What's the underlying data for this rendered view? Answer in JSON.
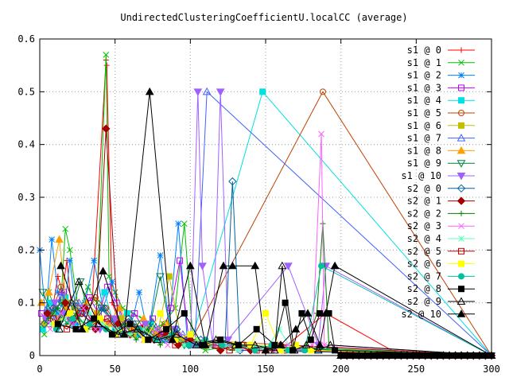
{
  "chart_data": {
    "type": "line",
    "title": "UndirectedClusteringCoefficientU.localCC (average)",
    "xlabel": "",
    "ylabel": "",
    "xlim": [
      0,
      300
    ],
    "ylim": [
      0,
      0.6
    ],
    "xticks": [
      "0",
      "50",
      "100",
      "150",
      "200",
      "250",
      "300"
    ],
    "yticks": [
      "0",
      "0.1",
      "0.2",
      "0.3",
      "0.4",
      "0.5",
      "0.6"
    ],
    "grid": true,
    "legend_position": "top-right",
    "series": [
      {
        "name": "s1 @ 0",
        "color": "#ff0000",
        "marker": "plus",
        "x": [
          2,
          5,
          8,
          12,
          15,
          18,
          22,
          28,
          35,
          44,
          44.5,
          48,
          52,
          60,
          70,
          78,
          88,
          95,
          105,
          115,
          125,
          140,
          160,
          190,
          240
        ],
        "y": [
          0.05,
          0.1,
          0.08,
          0.15,
          0.12,
          0.18,
          0.06,
          0.09,
          0.11,
          0.56,
          0.55,
          0.1,
          0.07,
          0.05,
          0.06,
          0.04,
          0.05,
          0.03,
          0.02,
          0.02,
          0.02,
          0.01,
          0.01,
          0.08,
          0.0
        ]
      },
      {
        "name": "s1 @ 1",
        "color": "#00c000",
        "marker": "cross",
        "x": [
          3,
          6,
          10,
          14,
          17,
          20,
          26,
          32,
          38,
          44,
          46,
          50,
          55,
          62,
          68,
          75,
          82,
          90,
          96,
          102,
          110,
          130
        ],
        "y": [
          0.04,
          0.12,
          0.09,
          0.1,
          0.24,
          0.2,
          0.08,
          0.13,
          0.1,
          0.57,
          0.15,
          0.12,
          0.09,
          0.08,
          0.07,
          0.05,
          0.06,
          0.09,
          0.25,
          0.02,
          0.01,
          0.02
        ]
      },
      {
        "name": "s1 @ 2",
        "color": "#0080ff",
        "marker": "star",
        "x": [
          0,
          4,
          8,
          12,
          16,
          20,
          25,
          30,
          36,
          42,
          48,
          54,
          60,
          66,
          72,
          80,
          86,
          92,
          98,
          104
        ],
        "y": [
          0.2,
          0.07,
          0.22,
          0.12,
          0.08,
          0.18,
          0.06,
          0.1,
          0.18,
          0.09,
          0.14,
          0.07,
          0.05,
          0.12,
          0.04,
          0.19,
          0.06,
          0.25,
          0.03,
          0.02
        ]
      },
      {
        "name": "s1 @ 3",
        "color": "#c000ff",
        "marker": "square",
        "x": [
          1,
          6,
          11,
          16,
          21,
          27,
          33,
          39,
          45,
          51,
          57,
          63,
          69,
          75,
          81,
          87,
          93,
          99
        ],
        "y": [
          0.08,
          0.06,
          0.1,
          0.12,
          0.07,
          0.09,
          0.11,
          0.08,
          0.13,
          0.1,
          0.06,
          0.08,
          0.05,
          0.07,
          0.04,
          0.09,
          0.18,
          0.03
        ]
      },
      {
        "name": "s1 @ 4",
        "color": "#00e0e0",
        "marker": "square-filled",
        "x": [
          2,
          7,
          12,
          17,
          22,
          29,
          36,
          43,
          50,
          58,
          66,
          74,
          82,
          90,
          100,
          148
        ],
        "y": [
          0.05,
          0.1,
          0.08,
          0.11,
          0.06,
          0.09,
          0.07,
          0.12,
          0.05,
          0.08,
          0.04,
          0.06,
          0.03,
          0.05,
          0.02,
          0.5
        ]
      },
      {
        "name": "s1 @ 5",
        "color": "#c04000",
        "marker": "circle",
        "x": [
          4,
          9,
          14,
          19,
          24,
          31,
          37,
          44,
          51,
          59,
          67,
          75,
          83,
          91,
          99,
          188
        ],
        "y": [
          0.07,
          0.09,
          0.13,
          0.06,
          0.1,
          0.08,
          0.11,
          0.09,
          0.06,
          0.07,
          0.05,
          0.04,
          0.06,
          0.03,
          0.02,
          0.5
        ]
      },
      {
        "name": "s1 @ 6",
        "color": "#c0c000",
        "marker": "square-filled",
        "x": [
          3,
          8,
          13,
          18,
          23,
          30,
          38,
          46,
          54,
          62,
          70,
          78,
          86,
          94
        ],
        "y": [
          0.06,
          0.08,
          0.07,
          0.1,
          0.09,
          0.05,
          0.08,
          0.06,
          0.07,
          0.04,
          0.05,
          0.04,
          0.15,
          0.03
        ]
      },
      {
        "name": "s1 @ 7",
        "color": "#4060ff",
        "marker": "triangle",
        "x": [
          5,
          10,
          15,
          20,
          26,
          33,
          40,
          47,
          55,
          63,
          71,
          79,
          87,
          95,
          103,
          111
        ],
        "y": [
          0.09,
          0.07,
          0.12,
          0.08,
          0.1,
          0.06,
          0.09,
          0.07,
          0.05,
          0.06,
          0.04,
          0.05,
          0.03,
          0.04,
          0.02,
          0.5
        ]
      },
      {
        "name": "s1 @ 8",
        "color": "#ffa000",
        "marker": "triangle-filled",
        "x": [
          1,
          6,
          13,
          18,
          24,
          31,
          38,
          45,
          53,
          61,
          69,
          77,
          85,
          93
        ],
        "y": [
          0.1,
          0.12,
          0.22,
          0.09,
          0.07,
          0.1,
          0.08,
          0.06,
          0.09,
          0.05,
          0.07,
          0.04,
          0.06,
          0.03
        ]
      },
      {
        "name": "s1 @ 9",
        "color": "#008040",
        "marker": "triangle-down",
        "x": [
          2,
          8,
          14,
          20,
          27,
          34,
          41,
          48,
          56,
          64,
          72,
          80,
          88,
          96
        ],
        "y": [
          0.12,
          0.08,
          0.1,
          0.07,
          0.14,
          0.06,
          0.09,
          0.07,
          0.05,
          0.06,
          0.04,
          0.15,
          0.03,
          0.02
        ]
      },
      {
        "name": "s1 @ 10",
        "color": "#a060ff",
        "marker": "triangle-down-filled",
        "x": [
          4,
          10,
          16,
          22,
          30,
          40,
          50,
          60,
          70,
          80,
          90,
          100,
          105,
          108,
          115,
          120,
          125,
          165,
          185,
          190
        ],
        "y": [
          0.07,
          0.1,
          0.08,
          0.06,
          0.09,
          0.05,
          0.07,
          0.04,
          0.06,
          0.03,
          0.05,
          0.02,
          0.5,
          0.17,
          0.02,
          0.5,
          0.03,
          0.17,
          0.02,
          0.17
        ]
      },
      {
        "name": "s2 @ 0",
        "color": "#0060a0",
        "marker": "diamond",
        "x": [
          3,
          9,
          15,
          21,
          28,
          35,
          43,
          51,
          59,
          67,
          75,
          83,
          91,
          99,
          107,
          115,
          123,
          128,
          133
        ],
        "y": [
          0.06,
          0.09,
          0.07,
          0.1,
          0.08,
          0.06,
          0.09,
          0.05,
          0.07,
          0.04,
          0.06,
          0.03,
          0.05,
          0.02,
          0.03,
          0.02,
          0.02,
          0.33,
          0.01
        ]
      },
      {
        "name": "s2 @ 1",
        "color": "#a00000",
        "marker": "diamond-filled",
        "x": [
          5,
          11,
          17,
          23,
          30,
          37,
          44,
          52,
          60,
          68,
          76,
          84,
          92,
          100,
          110,
          120,
          130,
          140,
          150,
          160
        ],
        "y": [
          0.08,
          0.06,
          0.1,
          0.07,
          0.09,
          0.05,
          0.43,
          0.06,
          0.04,
          0.05,
          0.03,
          0.04,
          0.02,
          0.03,
          0.02,
          0.01,
          0.02,
          0.01,
          0.01,
          0.02
        ]
      },
      {
        "name": "s2 @ 2",
        "color": "#008000",
        "marker": "plus",
        "x": [
          6,
          12,
          18,
          24,
          32,
          40,
          48,
          56,
          64,
          72,
          80,
          88,
          96,
          104,
          112,
          120,
          128,
          136,
          144,
          152,
          160,
          168,
          176,
          184,
          188,
          192
        ],
        "y": [
          0.07,
          0.09,
          0.06,
          0.08,
          0.05,
          0.07,
          0.04,
          0.06,
          0.03,
          0.05,
          0.02,
          0.04,
          0.02,
          0.03,
          0.02,
          0.02,
          0.01,
          0.02,
          0.01,
          0.01,
          0.02,
          0.01,
          0.01,
          0.08,
          0.25,
          0.02
        ]
      },
      {
        "name": "s2 @ 3",
        "color": "#ff60ff",
        "marker": "cross",
        "x": [
          7,
          14,
          21,
          29,
          37,
          45,
          53,
          61,
          69,
          77,
          85,
          93,
          101,
          109,
          117,
          125,
          133,
          141,
          149,
          157,
          165,
          173,
          181,
          187,
          189
        ],
        "y": [
          0.05,
          0.08,
          0.06,
          0.09,
          0.05,
          0.07,
          0.04,
          0.06,
          0.03,
          0.05,
          0.02,
          0.04,
          0.02,
          0.03,
          0.02,
          0.02,
          0.01,
          0.02,
          0.01,
          0.01,
          0.02,
          0.01,
          0.02,
          0.42,
          0.02
        ]
      },
      {
        "name": "s2 @ 4",
        "color": "#60ffc0",
        "marker": "star",
        "x": [
          8,
          16,
          24,
          33,
          42,
          51,
          60,
          69,
          78,
          87,
          96,
          105,
          114,
          123,
          132,
          141,
          150,
          159,
          168
        ],
        "y": [
          0.06,
          0.07,
          0.05,
          0.08,
          0.06,
          0.05,
          0.04,
          0.05,
          0.03,
          0.04,
          0.02,
          0.03,
          0.02,
          0.02,
          0.01,
          0.02,
          0.01,
          0.05,
          0.01
        ]
      },
      {
        "name": "s2 @ 5",
        "color": "#c00000",
        "marker": "square",
        "x": [
          9,
          18,
          27,
          36,
          45,
          54,
          63,
          72,
          81,
          90,
          99,
          108,
          117,
          126,
          135,
          144,
          153,
          162
        ],
        "y": [
          0.07,
          0.05,
          0.08,
          0.06,
          0.07,
          0.04,
          0.05,
          0.03,
          0.04,
          0.02,
          0.03,
          0.02,
          0.02,
          0.01,
          0.02,
          0.01,
          0.01,
          0.01
        ]
      },
      {
        "name": "s2 @ 6",
        "color": "#ffff00",
        "marker": "square-filled",
        "x": [
          10,
          20,
          30,
          40,
          50,
          60,
          70,
          80,
          90,
          100,
          110,
          120,
          130,
          140,
          150,
          160,
          170,
          180
        ],
        "y": [
          0.06,
          0.08,
          0.05,
          0.07,
          0.04,
          0.06,
          0.03,
          0.08,
          0.03,
          0.04,
          0.02,
          0.03,
          0.02,
          0.02,
          0.08,
          0.01,
          0.02,
          0.01
        ]
      },
      {
        "name": "s2 @ 7",
        "color": "#00c0a0",
        "marker": "circle-filled",
        "x": [
          11,
          22,
          33,
          44,
          55,
          66,
          77,
          88,
          99,
          110,
          121,
          132,
          143,
          154,
          165,
          176,
          187
        ],
        "y": [
          0.05,
          0.07,
          0.06,
          0.05,
          0.04,
          0.05,
          0.03,
          0.04,
          0.02,
          0.03,
          0.02,
          0.02,
          0.01,
          0.02,
          0.01,
          0.01,
          0.17
        ]
      },
      {
        "name": "s2 @ 8",
        "color": "#000000",
        "marker": "square-filled",
        "x": [
          12,
          24,
          36,
          48,
          60,
          72,
          84,
          96,
          108,
          120,
          132,
          144,
          156,
          163,
          168,
          174,
          180,
          186,
          192,
          196
        ],
        "y": [
          0.06,
          0.05,
          0.07,
          0.04,
          0.06,
          0.03,
          0.05,
          0.08,
          0.02,
          0.03,
          0.02,
          0.05,
          0.02,
          0.1,
          0.01,
          0.08,
          0.03,
          0.08,
          0.08,
          0.01
        ]
      },
      {
        "name": "s2 @ 9",
        "color": "#000000",
        "marker": "triangle",
        "x": [
          13,
          26,
          39,
          52,
          65,
          78,
          91,
          104,
          117,
          130,
          143,
          156,
          161,
          169,
          177,
          185,
          193
        ],
        "y": [
          0.05,
          0.14,
          0.06,
          0.04,
          0.05,
          0.03,
          0.04,
          0.02,
          0.03,
          0.02,
          0.02,
          0.01,
          0.17,
          0.01,
          0.02,
          0.01,
          0.02
        ]
      },
      {
        "name": "s2 @ 10",
        "color": "#000000",
        "marker": "triangle-filled",
        "x": [
          14,
          28,
          42,
          56,
          73,
          88,
          100,
          110,
          122,
          128,
          143,
          150,
          160,
          170,
          178,
          186,
          190,
          196
        ],
        "y": [
          0.17,
          0.05,
          0.16,
          0.04,
          0.5,
          0.03,
          0.17,
          0.02,
          0.17,
          0.17,
          0.17,
          0.01,
          0.02,
          0.05,
          0.08,
          0.02,
          0.08,
          0.17
        ]
      }
    ]
  }
}
